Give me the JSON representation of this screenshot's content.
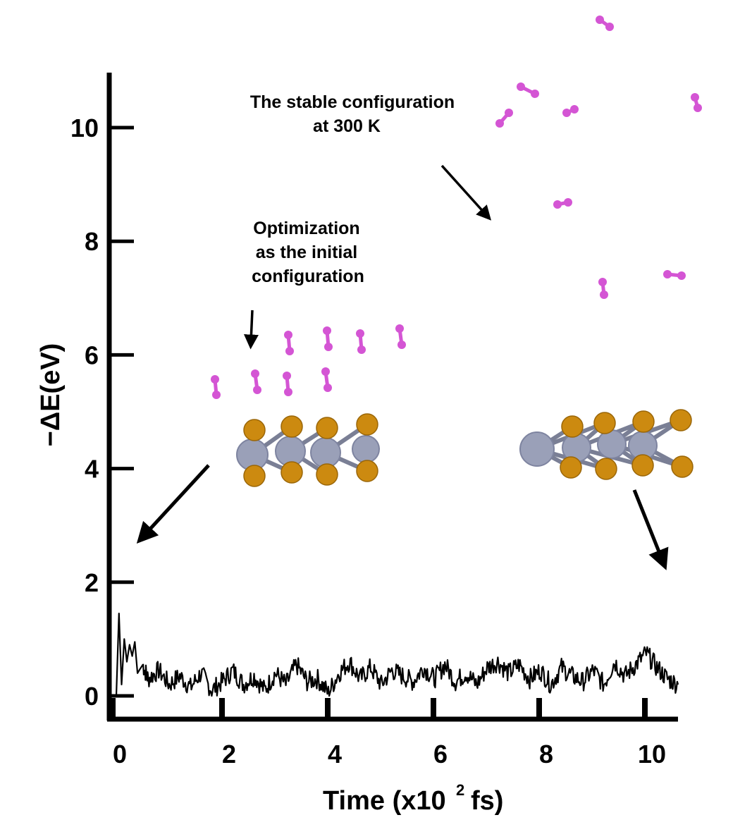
{
  "chart_data": {
    "type": "line",
    "xlabel": "Time (x10",
    "xlabel_exp": "2",
    "xlabel_unit": "fs)",
    "ylabel": "−ΔE(eV)",
    "xlim": [
      0,
      10.7
    ],
    "ylim": [
      -0.4,
      10.7
    ],
    "x_ticks": [
      "0",
      "2",
      "4",
      "6",
      "8",
      "10"
    ],
    "y_ticks": [
      "0",
      "2",
      "4",
      "6",
      "8",
      "10"
    ],
    "grid": false,
    "series": [
      {
        "values_description": "energy fluctuation over time",
        "x": [
          0.0,
          0.05,
          0.1,
          0.15,
          0.2,
          0.25,
          0.3,
          0.35,
          0.4,
          0.5,
          0.6,
          0.8,
          1.0,
          1.2,
          1.4,
          1.6,
          1.8,
          2.0,
          2.2,
          2.4,
          2.6,
          2.8,
          3.0,
          3.2,
          3.4,
          3.6,
          3.8,
          4.0,
          4.2,
          4.4,
          4.6,
          4.8,
          5.0,
          5.2,
          5.4,
          5.6,
          5.8,
          6.0,
          6.2,
          6.4,
          6.6,
          6.8,
          7.0,
          7.2,
          7.4,
          7.6,
          7.8,
          8.0,
          8.2,
          8.4,
          8.6,
          8.8,
          9.0,
          9.2,
          9.4,
          9.6,
          9.8,
          10.0,
          10.2,
          10.4,
          10.6
        ],
        "y": [
          0.0,
          1.45,
          0.2,
          1.0,
          0.6,
          0.9,
          0.7,
          0.95,
          0.4,
          0.55,
          0.3,
          0.45,
          0.2,
          0.35,
          0.15,
          0.4,
          0.1,
          0.25,
          0.45,
          0.2,
          0.35,
          0.1,
          0.4,
          0.2,
          0.55,
          0.25,
          0.3,
          0.05,
          0.4,
          0.6,
          0.3,
          0.5,
          0.2,
          0.45,
          0.35,
          0.25,
          0.5,
          0.3,
          0.55,
          0.25,
          0.4,
          0.2,
          0.5,
          0.6,
          0.4,
          0.55,
          0.3,
          0.45,
          0.2,
          0.5,
          0.35,
          0.25,
          0.45,
          0.2,
          0.6,
          0.35,
          0.55,
          0.75,
          0.5,
          0.3,
          0.2
        ]
      }
    ],
    "annotations": [
      {
        "id": "optimization",
        "lines": [
          "Optimization",
          "as the initial",
          "configuration"
        ]
      },
      {
        "id": "stable",
        "lines": [
          "The stable configuration",
          "at 300 K"
        ]
      }
    ]
  },
  "colors": {
    "axis": "#000000",
    "line": "#000000",
    "hydrogen": "#d455d4",
    "sulfur": "#cc8a10",
    "metal": "#9aa0b8"
  }
}
